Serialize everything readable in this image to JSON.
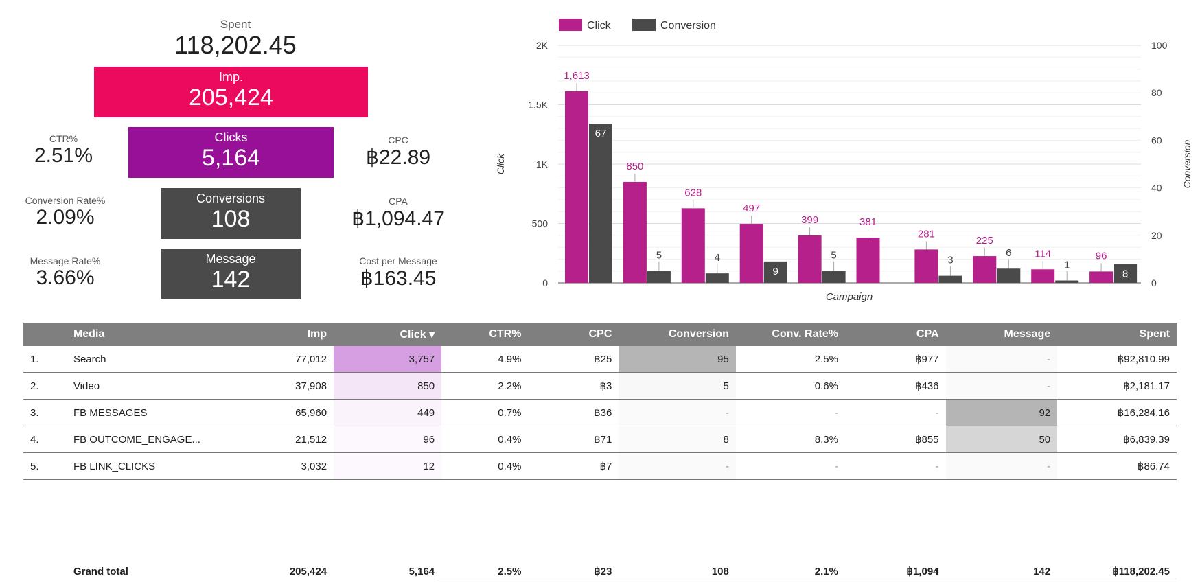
{
  "scorecards": {
    "spent": {
      "label": "Spent",
      "value": "118,202.45"
    },
    "imp": {
      "label": "Imp.",
      "value": "205,424"
    },
    "clicks": {
      "label": "Clicks",
      "value": "5,164"
    },
    "conversions": {
      "label": "Conversions",
      "value": "108"
    },
    "message": {
      "label": "Message",
      "value": "142"
    },
    "ctr": {
      "label": "CTR%",
      "value": "2.51%"
    },
    "cpc": {
      "label": "CPC",
      "value": "฿22.89"
    },
    "conv_rate": {
      "label": "Conversion Rate%",
      "value": "2.09%"
    },
    "cpa": {
      "label": "CPA",
      "value": "฿1,094.47"
    },
    "msg_rate": {
      "label": "Message Rate%",
      "value": "3.66%"
    },
    "cost_per_msg": {
      "label": "Cost per Message",
      "value": "฿163.45"
    }
  },
  "colors": {
    "imp": "#ec0a5f",
    "click": "#b5208a",
    "clicks_box": "#980f98",
    "conversion": "#4a4a4a",
    "header": "#7f7f7f"
  },
  "chart_data": {
    "type": "bar",
    "xlabel": "Campaign",
    "ylabel": "Click",
    "y2label": "Conversion",
    "ylim": [
      0,
      2000
    ],
    "y2lim": [
      0,
      100
    ],
    "yticks": [
      "0",
      "500",
      "1K",
      "1.5K",
      "2K"
    ],
    "y2ticks": [
      "0",
      "20",
      "40",
      "60",
      "80",
      "100"
    ],
    "legend_position": "top-left",
    "series": [
      {
        "name": "Click",
        "axis": "left",
        "color": "#b5208a",
        "values": [
          1613,
          850,
          628,
          497,
          399,
          381,
          281,
          225,
          114,
          96
        ]
      },
      {
        "name": "Conversion",
        "axis": "right",
        "color": "#4a4a4a",
        "values": [
          67,
          5,
          4,
          9,
          5,
          0,
          3,
          6,
          1,
          8
        ]
      }
    ],
    "click_labels": [
      "1,613",
      "850",
      "628",
      "497",
      "399",
      "381",
      "281",
      "225",
      "114",
      "96"
    ],
    "conversion_labels": [
      "67",
      "5",
      "4",
      "9",
      "5",
      "",
      "3",
      "6",
      "1",
      "8"
    ]
  },
  "table": {
    "columns": [
      "",
      "Media",
      "Imp",
      "Click ▾",
      "CTR%",
      "CPC",
      "Conversion",
      "Conv. Rate%",
      "CPA",
      "Message",
      "Spent"
    ],
    "rows": [
      [
        "1.",
        "Search",
        "77,012",
        "3,757",
        "4.9%",
        "฿25",
        "95",
        "2.5%",
        "฿977",
        "-",
        "฿92,810.99"
      ],
      [
        "2.",
        "Video",
        "37,908",
        "850",
        "2.2%",
        "฿3",
        "5",
        "0.6%",
        "฿436",
        "-",
        "฿2,181.17"
      ],
      [
        "3.",
        "FB MESSAGES",
        "65,960",
        "449",
        "0.7%",
        "฿36",
        "-",
        "-",
        "-",
        "92",
        "฿16,284.16"
      ],
      [
        "4.",
        "FB OUTCOME_ENGAGE...",
        "21,512",
        "96",
        "0.4%",
        "฿71",
        "8",
        "8.3%",
        "฿855",
        "50",
        "฿6,839.39"
      ],
      [
        "5.",
        "FB LINK_CLICKS",
        "3,032",
        "12",
        "0.4%",
        "฿7",
        "-",
        "-",
        "-",
        "-",
        "฿86.74"
      ]
    ],
    "grand_total": [
      "",
      "Grand total",
      "205,424",
      "5,164",
      "2.5%",
      "฿23",
      "108",
      "2.1%",
      "฿1,094",
      "142",
      "฿118,202.45"
    ],
    "click_heat": [
      0.55,
      0.15,
      0.07,
      0.02,
      0.01
    ],
    "conversion_heat": [
      0.55,
      0.05,
      0.0,
      0.04,
      0.0
    ],
    "message_heat": [
      0.0,
      0.0,
      0.55,
      0.3,
      0.0
    ]
  }
}
